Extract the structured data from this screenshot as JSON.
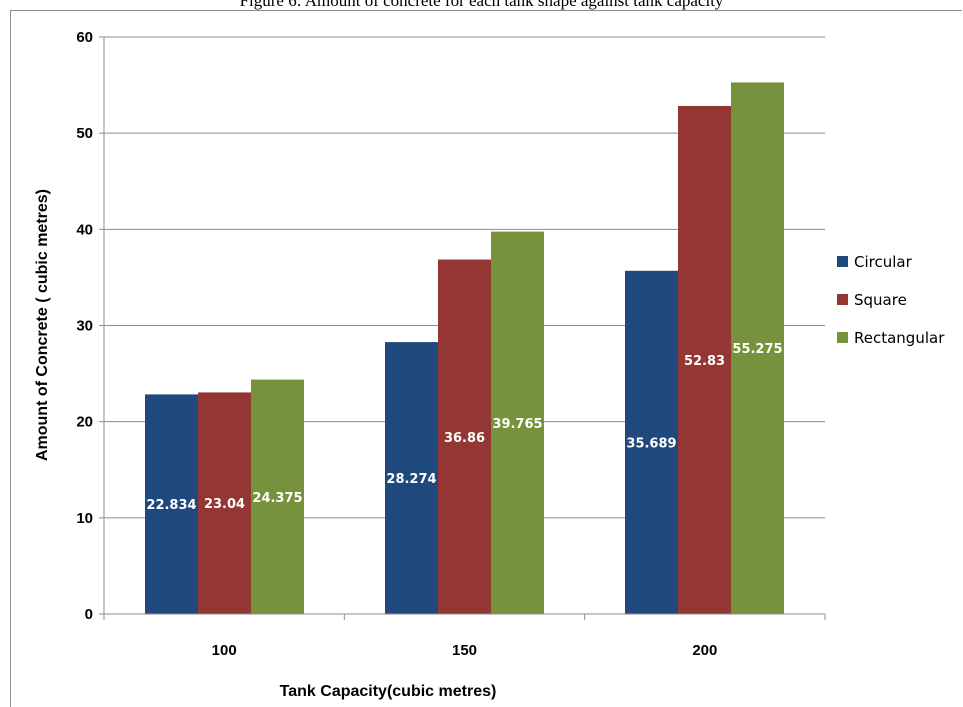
{
  "caption": "Figure 6: Amount of concrete for each tank shape against tank capacity",
  "chart_data": {
    "type": "bar",
    "title": "",
    "xlabel": "Tank Capacity(cubic metres)",
    "ylabel": "Amount of Concrete ( cubic metres)",
    "categories": [
      "100",
      "150",
      "200"
    ],
    "ylim": [
      0,
      60
    ],
    "yticks": [
      0,
      10,
      20,
      30,
      40,
      50,
      60
    ],
    "grid": true,
    "legend_position": "right",
    "series": [
      {
        "name": "Circular",
        "color": "#1f497d",
        "values": [
          22.834,
          28.274,
          35.689
        ],
        "labels": [
          "22.834",
          "28.274",
          "35.689"
        ]
      },
      {
        "name": "Square",
        "color": "#943634",
        "values": [
          23.04,
          36.86,
          52.83
        ],
        "labels": [
          "23.04",
          "36.86",
          "52.83"
        ]
      },
      {
        "name": "Rectangular",
        "color": "#76923c",
        "values": [
          24.375,
          39.765,
          55.275
        ],
        "labels": [
          "24.375",
          "39.765",
          "55.275"
        ]
      }
    ]
  }
}
